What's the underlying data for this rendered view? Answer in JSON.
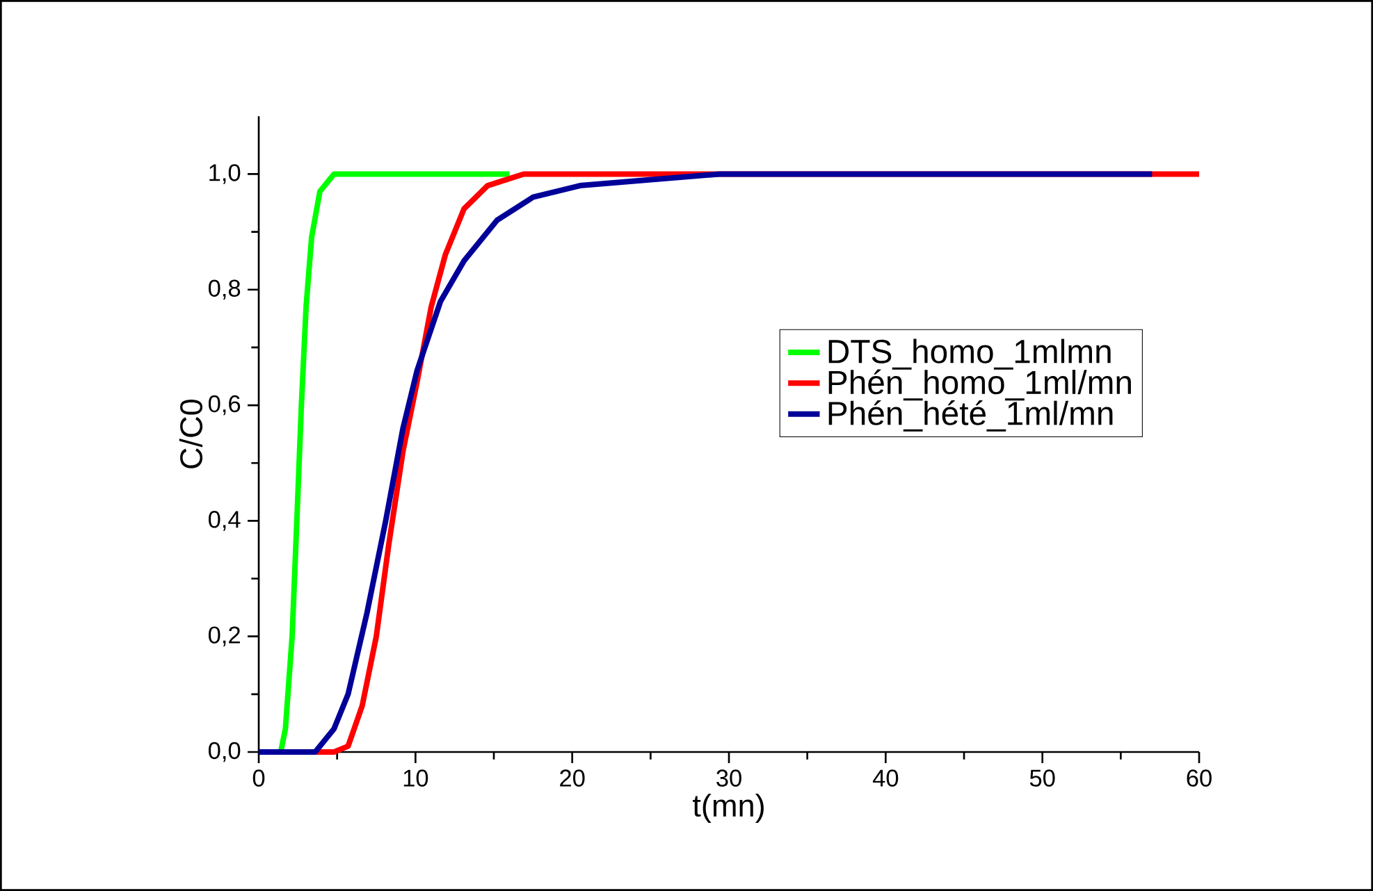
{
  "chart_data": {
    "type": "line",
    "xlabel": "t(mn)",
    "ylabel": "C/C0",
    "xlim": [
      0,
      60
    ],
    "ylim": [
      0,
      1.1
    ],
    "xticks": [
      0,
      10,
      20,
      30,
      40,
      50,
      60
    ],
    "yticks": [
      {
        "value": 0,
        "label": "0,0"
      },
      {
        "value": 0.2,
        "label": "0,2"
      },
      {
        "value": 0.4,
        "label": "0,4"
      },
      {
        "value": 0.6,
        "label": "0,6"
      },
      {
        "value": 0.8,
        "label": "0,8"
      },
      {
        "value": 1.0,
        "label": "1,0"
      }
    ],
    "legend": "right",
    "grid": false,
    "line_style": "solid",
    "series": [
      {
        "name": "DTS_homo_1mlmn",
        "color": "#00ff00",
        "x": [
          0,
          1.4,
          1.7,
          2.13,
          2.43,
          2.72,
          3.02,
          3.37,
          3.9,
          4.8,
          5.7,
          16
        ],
        "values": [
          0,
          0,
          0.04,
          0.2,
          0.4,
          0.6,
          0.77,
          0.89,
          0.97,
          1.0,
          1.0,
          1.0
        ]
      },
      {
        "name": "Phén_homo_1ml/mn",
        "color": "#ff0000",
        "x": [
          0,
          4.8,
          5.7,
          6.6,
          7.5,
          8.3,
          9.2,
          10.1,
          11.0,
          11.9,
          13.1,
          14.6,
          16.9,
          19,
          60
        ],
        "values": [
          0,
          0,
          0.01,
          0.08,
          0.2,
          0.36,
          0.52,
          0.64,
          0.77,
          0.86,
          0.94,
          0.98,
          1.0,
          1.0,
          1.0
        ]
      },
      {
        "name": "Phén_hété_1ml/mn",
        "color": "#000099",
        "x": [
          0,
          3.6,
          4.8,
          5.7,
          6.9,
          8.1,
          9.2,
          10.1,
          11.6,
          13.1,
          15.2,
          17.5,
          20.5,
          24.9,
          29.4,
          57
        ],
        "values": [
          0,
          0,
          0.04,
          0.1,
          0.24,
          0.4,
          0.56,
          0.66,
          0.78,
          0.85,
          0.92,
          0.96,
          0.98,
          0.99,
          1.0,
          1.0
        ]
      }
    ]
  }
}
